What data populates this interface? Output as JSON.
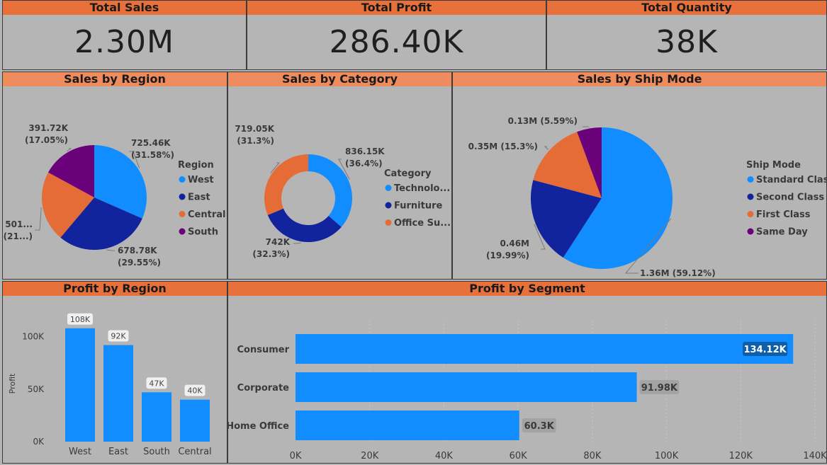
{
  "kpis": {
    "total_sales": {
      "title": "Total Sales",
      "value": "2.30M"
    },
    "total_profit": {
      "title": "Total Profit",
      "value": "286.40K"
    },
    "total_quantity": {
      "title": "Total Quantity",
      "value": "38K"
    }
  },
  "colors": {
    "blue": "#118dff",
    "navy": "#12239e",
    "orange": "#e66c37",
    "purple": "#6b007b",
    "header": "#e8703b"
  },
  "panels": {
    "sales_region": "Sales by Region",
    "sales_category": "Sales by Category",
    "sales_shipmode": "Sales by Ship Mode",
    "profit_region": "Profit by Region",
    "profit_segment": "Profit by Segment"
  },
  "chart_data": [
    {
      "type": "pie",
      "title": "Sales by Region",
      "legend_title": "Region",
      "legend_position": "right",
      "slices": [
        {
          "name": "West",
          "value": 725.46,
          "label1": "725.46K",
          "label2": "(31.58%)",
          "color": "#118dff"
        },
        {
          "name": "East",
          "value": 678.78,
          "label1": "678.78K",
          "label2": "(29.55%)",
          "color": "#12239e"
        },
        {
          "name": "Central",
          "value": 501.24,
          "label1": "501...",
          "label2": "(21...)",
          "color": "#e66c37"
        },
        {
          "name": "South",
          "value": 391.72,
          "label1": "391.72K",
          "label2": "(17.05%)",
          "color": "#6b007b"
        }
      ]
    },
    {
      "type": "pie",
      "subtype": "donut",
      "title": "Sales by Category",
      "legend_title": "Category",
      "legend_position": "right",
      "slices": [
        {
          "name": "Technolo...",
          "value": 836.15,
          "label1": "836.15K",
          "label2": "(36.4%)",
          "color": "#118dff"
        },
        {
          "name": "Furniture",
          "value": 742,
          "label1": "742K",
          "label2": "(32.3%)",
          "color": "#12239e"
        },
        {
          "name": "Office Su...",
          "value": 719.05,
          "label1": "719.05K",
          "label2": "(31.3%)",
          "color": "#e66c37"
        }
      ]
    },
    {
      "type": "pie",
      "title": "Sales by Ship Mode",
      "legend_title": "Ship Mode",
      "legend_position": "right",
      "slices": [
        {
          "name": "Standard Class",
          "value": 1.36,
          "label1": "1.36M (59.12%)",
          "color": "#118dff"
        },
        {
          "name": "Second Class",
          "value": 0.46,
          "label1": "0.46M",
          "label2": "(19.99%)",
          "color": "#12239e"
        },
        {
          "name": "First Class",
          "value": 0.35,
          "label1": "0.35M (15.3%)",
          "color": "#e66c37"
        },
        {
          "name": "Same Day",
          "value": 0.13,
          "label1": "0.13M (5.59%)",
          "color": "#6b007b"
        }
      ]
    },
    {
      "type": "bar",
      "title": "Profit by Region",
      "categories": [
        "West",
        "East",
        "South",
        "Central"
      ],
      "values": [
        108,
        92,
        47,
        40
      ],
      "data_labels": [
        "108K",
        "92K",
        "47K",
        "40K"
      ],
      "ylabel": "Profit",
      "yticks": [
        "0K",
        "50K",
        "100K"
      ],
      "ylim": [
        0,
        120
      ],
      "color": "#118dff"
    },
    {
      "type": "bar",
      "orientation": "horizontal",
      "title": "Profit by Segment",
      "categories": [
        "Consumer",
        "Corporate",
        "Home Office"
      ],
      "values": [
        134.12,
        91.98,
        60.3
      ],
      "data_labels": [
        "134.12K",
        "91.98K",
        "60.3K"
      ],
      "xticks": [
        "0K",
        "20K",
        "40K",
        "60K",
        "80K",
        "100K",
        "120K",
        "140K"
      ],
      "xlim": [
        0,
        140
      ],
      "color": "#118dff"
    }
  ]
}
